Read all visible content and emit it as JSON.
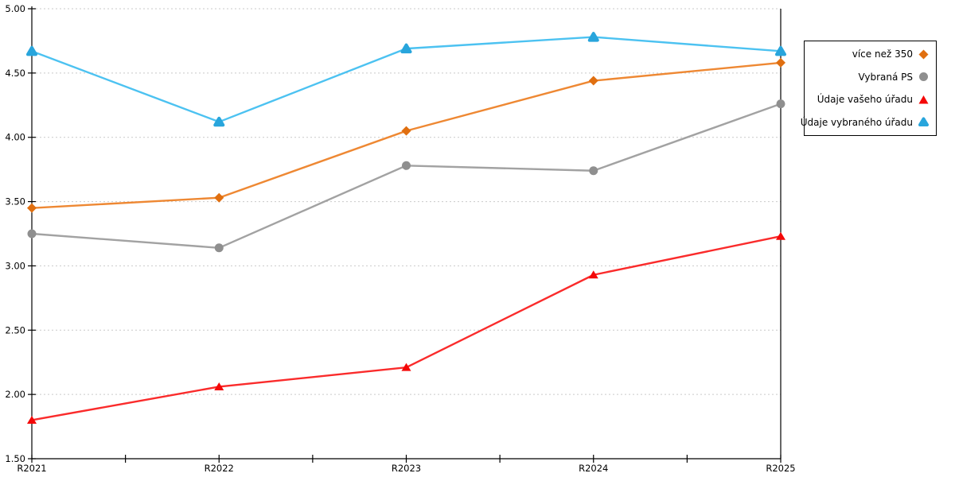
{
  "chart_data": {
    "type": "line",
    "categories": [
      "R2021",
      "R2022",
      "R2023",
      "R2024",
      "R2025"
    ],
    "series": [
      {
        "name": "více než 350",
        "marker": "diamond",
        "marker_color": "#E06F10",
        "line_color": "#EE8833",
        "values": [
          3.45,
          3.53,
          4.05,
          4.44,
          4.58
        ]
      },
      {
        "name": "Vybraná PS",
        "marker": "circle",
        "marker_color": "#8F8F8F",
        "line_color": "#A2A2A2",
        "values": [
          3.25,
          3.14,
          3.78,
          3.74,
          4.26
        ]
      },
      {
        "name": "Údaje vašeho úřadu",
        "marker": "triangle",
        "marker_color": "#F40707",
        "line_color": "#FA2B2B",
        "values": [
          1.8,
          2.06,
          2.21,
          2.93,
          3.23
        ]
      },
      {
        "name": "Údaje vybraného úřadu",
        "marker": "triangle-rounded",
        "marker_color": "#28A5DC",
        "line_color": "#4CC2F1",
        "values": [
          4.67,
          4.12,
          4.69,
          4.78,
          4.67
        ]
      }
    ],
    "ylim": [
      1.5,
      5.0
    ],
    "ytick_step": 0.5,
    "ytick_labels": [
      "5.00",
      "4.50",
      "4.00",
      "3.50",
      "3.00",
      "2.50",
      "2.00",
      "1.50"
    ],
    "xlabel": "",
    "ylabel": "",
    "title": "",
    "grid": "horizontal-dashed",
    "legend_position": "right-outside"
  },
  "colors": {
    "background": "#FFFFFF",
    "axis": "#000000",
    "grid": "#C9C9C9",
    "tick_label": "#000000",
    "legend_border": "#000000",
    "legend_background": "#FFFFFF"
  }
}
